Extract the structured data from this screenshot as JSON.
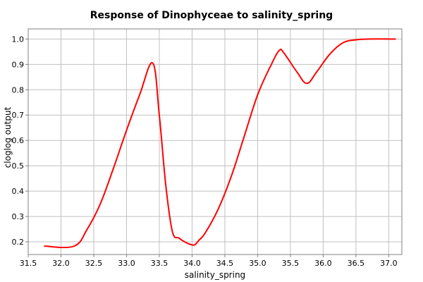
{
  "chart_data": {
    "type": "line",
    "title": "Response of Dinophyceae to salinity_spring",
    "xlabel": "salinity_spring",
    "ylabel": "cloglog output",
    "xlim": [
      31.5,
      37.2
    ],
    "ylim": [
      0.15,
      1.04
    ],
    "x_ticks": [
      31.5,
      32.0,
      32.5,
      33.0,
      33.5,
      34.0,
      34.5,
      35.0,
      35.5,
      36.0,
      36.5,
      37.0
    ],
    "x_tick_labels": [
      "31.5",
      "32.0",
      "32.5",
      "33.0",
      "33.5",
      "34.0",
      "34.5",
      "35.0",
      "35.5",
      "36.0",
      "36.5",
      "37.0"
    ],
    "y_ticks": [
      0.2,
      0.3,
      0.4,
      0.5,
      0.6,
      0.7,
      0.8,
      0.9,
      1.0
    ],
    "y_tick_labels": [
      "0.2",
      "0.3",
      "0.4",
      "0.5",
      "0.6",
      "0.7",
      "0.8",
      "0.9",
      "1.0"
    ],
    "grid": true,
    "line_color": "#ff0000",
    "series": [
      {
        "x": [
          31.75,
          32.2,
          32.4,
          32.6,
          32.8,
          33.0,
          33.2,
          33.4,
          33.5,
          33.6,
          33.7,
          33.8,
          33.9,
          34.0,
          34.05,
          34.1,
          34.2,
          34.4,
          34.6,
          34.8,
          35.0,
          35.2,
          35.33,
          35.4,
          35.6,
          35.75,
          35.9,
          36.1,
          36.3,
          36.5,
          36.7,
          37.1
        ],
        "y": [
          0.183,
          0.183,
          0.25,
          0.35,
          0.49,
          0.64,
          0.78,
          0.905,
          0.7,
          0.42,
          0.24,
          0.215,
          0.198,
          0.188,
          0.19,
          0.205,
          0.235,
          0.33,
          0.46,
          0.62,
          0.78,
          0.895,
          0.955,
          0.945,
          0.87,
          0.825,
          0.87,
          0.94,
          0.985,
          0.997,
          1.0,
          1.0
        ]
      }
    ]
  }
}
